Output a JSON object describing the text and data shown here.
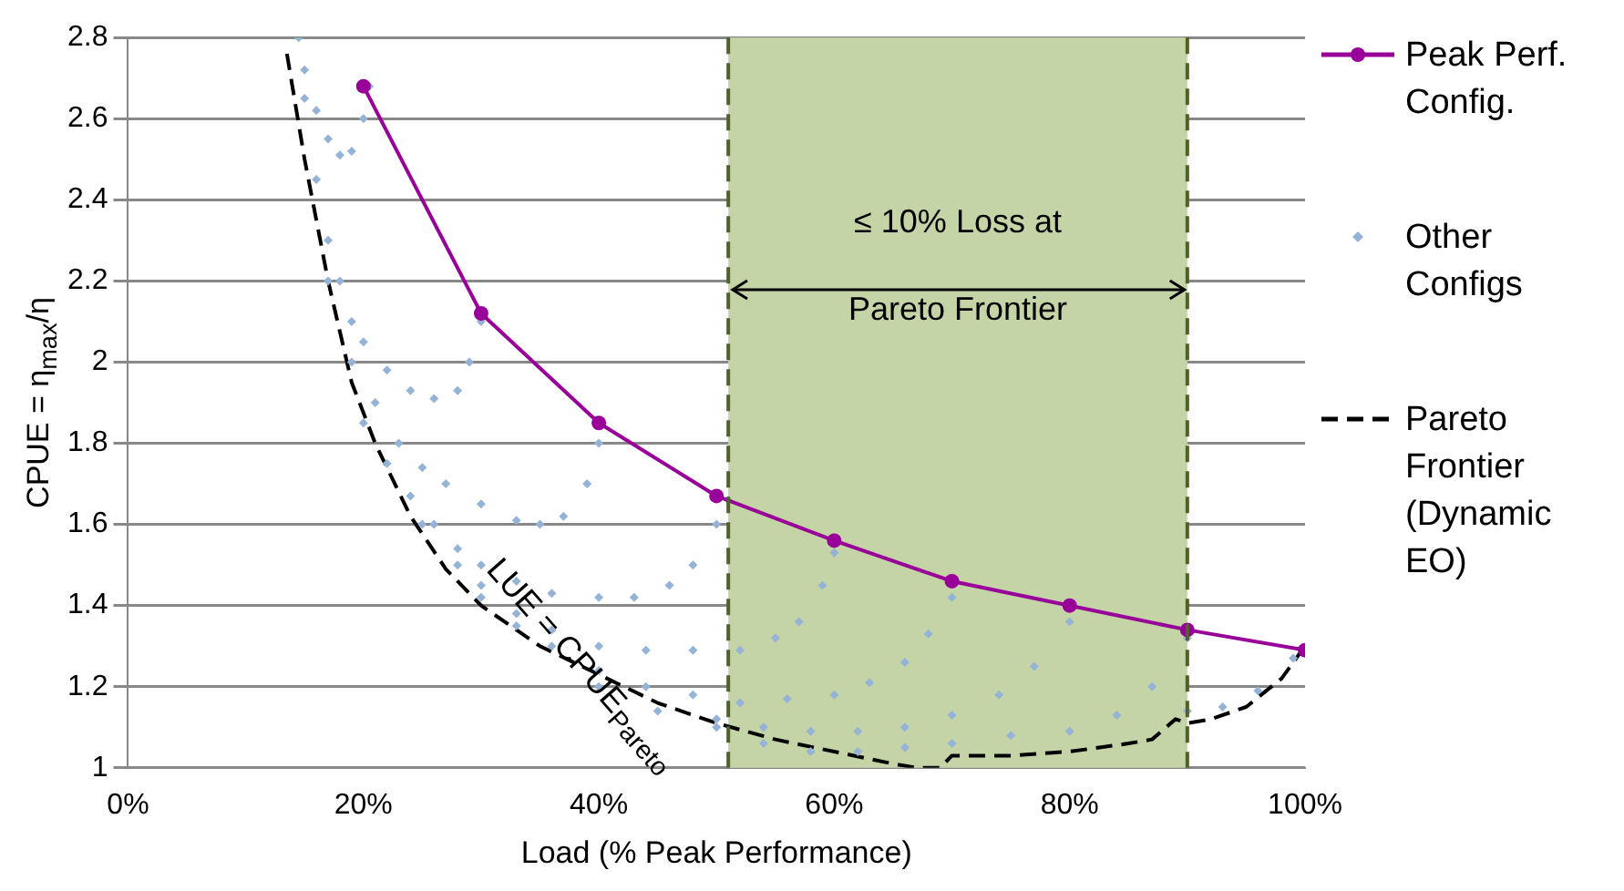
{
  "chart_data": {
    "type": "line",
    "xlabel": "Load (% Peak Performance)",
    "ylabel": "CPUE = η$_{max}$/η",
    "xlim": [
      0,
      100
    ],
    "xticks": [
      {
        "value": 0,
        "label": "0%"
      },
      {
        "value": 20,
        "label": "20%"
      },
      {
        "value": 40,
        "label": "40%"
      },
      {
        "value": 60,
        "label": "60%"
      },
      {
        "value": 80,
        "label": "80%"
      },
      {
        "value": 100,
        "label": "100%"
      }
    ],
    "ylim": [
      1,
      2.8
    ],
    "yticks": [
      1,
      1.2,
      1.4,
      1.6,
      1.8,
      2,
      2.2,
      2.4,
      2.6,
      2.8
    ],
    "grid": "y",
    "legend": "right",
    "series": [
      {
        "name": "Peak Perf. Config.",
        "type": "line",
        "color": "#990099",
        "marker": "circle",
        "line_style": "solid",
        "x": [
          20,
          30,
          40,
          50,
          60,
          70,
          80,
          90,
          100
        ],
        "values": [
          2.68,
          2.12,
          1.85,
          1.67,
          1.56,
          1.46,
          1.4,
          1.34,
          1.29
        ]
      },
      {
        "name": "Other Configs",
        "type": "scatter",
        "color": "#95b3d7",
        "marker": "diamond",
        "x": [
          14.5,
          15,
          16,
          17,
          18,
          19,
          20,
          20.5,
          15,
          16,
          17,
          18,
          19,
          20,
          22,
          24,
          26,
          28,
          29,
          30,
          17,
          19,
          21,
          23,
          25,
          27,
          30,
          33,
          35,
          37,
          39,
          40,
          20,
          22,
          24,
          26,
          28,
          30,
          33,
          36,
          40,
          43,
          46,
          48,
          50,
          51,
          25,
          28,
          30,
          33,
          36,
          40,
          44,
          48,
          52,
          55,
          57,
          59,
          60,
          30,
          33,
          36,
          40,
          44,
          48,
          52,
          56,
          60,
          63,
          66,
          68,
          70,
          40,
          45,
          50,
          54,
          58,
          62,
          66,
          70,
          74,
          77,
          80,
          50,
          54,
          58,
          62,
          66,
          70,
          75,
          80,
          84,
          87,
          90,
          90,
          93,
          96,
          99
        ],
        "values": [
          2.8,
          2.72,
          2.62,
          2.55,
          2.51,
          2.52,
          2.6,
          2.68,
          2.65,
          2.45,
          2.3,
          2.2,
          2.1,
          2.05,
          1.98,
          1.93,
          1.91,
          1.93,
          2,
          2.1,
          2.2,
          2,
          1.9,
          1.8,
          1.74,
          1.7,
          1.65,
          1.61,
          1.6,
          1.62,
          1.7,
          1.8,
          1.85,
          1.75,
          1.67,
          1.6,
          1.54,
          1.5,
          1.46,
          1.43,
          1.42,
          1.42,
          1.45,
          1.5,
          1.6,
          1.66,
          1.6,
          1.5,
          1.45,
          1.38,
          1.34,
          1.3,
          1.29,
          1.29,
          1.29,
          1.32,
          1.36,
          1.45,
          1.53,
          1.42,
          1.35,
          1.3,
          1.24,
          1.2,
          1.18,
          1.16,
          1.17,
          1.18,
          1.21,
          1.26,
          1.33,
          1.42,
          1.2,
          1.14,
          1.12,
          1.1,
          1.09,
          1.09,
          1.1,
          1.13,
          1.18,
          1.25,
          1.36,
          1.1,
          1.06,
          1.04,
          1.04,
          1.05,
          1.06,
          1.08,
          1.09,
          1.13,
          1.2,
          1.32,
          1.14,
          1.15,
          1.19,
          1.27
        ]
      },
      {
        "name": "Pareto Frontier (Dynamic EO)",
        "type": "line",
        "color": "#000000",
        "marker": "none",
        "line_style": "dashed",
        "x": [
          13.5,
          15,
          17,
          19,
          21,
          24,
          27,
          30,
          35,
          40,
          45,
          50,
          55,
          60,
          65,
          67,
          69,
          70,
          75,
          80,
          85,
          87,
          89,
          90,
          92,
          95,
          98,
          100
        ],
        "values": [
          2.76,
          2.5,
          2.2,
          1.95,
          1.8,
          1.62,
          1.49,
          1.4,
          1.3,
          1.23,
          1.16,
          1.11,
          1.07,
          1.04,
          1.01,
          1,
          1,
          1.03,
          1.03,
          1.04,
          1.06,
          1.07,
          1.12,
          1.11,
          1.12,
          1.15,
          1.22,
          1.3
        ]
      }
    ],
    "bands": [
      {
        "axis": "x",
        "from": 51,
        "to": 90,
        "label": "≤ 10% Loss at Pareto Frontier",
        "color": "#c4d4a6"
      }
    ],
    "ref_lines": [
      {
        "axis": "x",
        "value": 51,
        "color": "#4f6228",
        "line_style": "dashed"
      },
      {
        "axis": "x",
        "value": 90,
        "color": "#4f6228",
        "line_style": "dashed"
      }
    ],
    "annotations": [
      "LUE = CPUE$_{Pareto}$"
    ]
  }
}
